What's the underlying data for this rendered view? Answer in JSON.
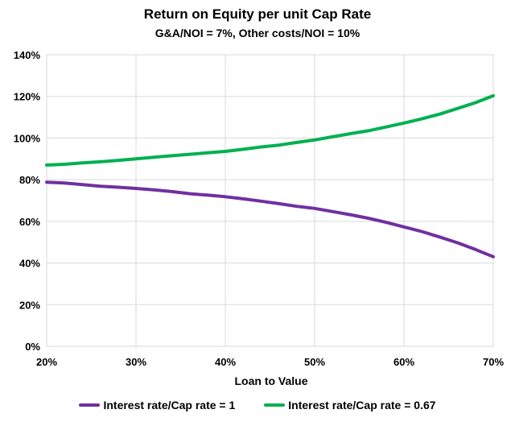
{
  "chart_data": {
    "type": "line",
    "title": "Return on Equity per unit Cap Rate",
    "subtitle": "G&A/NOI = 7%, Other costs/NOI = 10%",
    "xlabel": "Loan to Value",
    "ylabel": "",
    "x_ticks": [
      "20%",
      "30%",
      "40%",
      "50%",
      "60%",
      "70%"
    ],
    "y_ticks": [
      "0%",
      "20%",
      "40%",
      "60%",
      "80%",
      "100%",
      "120%",
      "140%"
    ],
    "xlim": [
      20,
      70
    ],
    "ylim": [
      0,
      140
    ],
    "grid": true,
    "legend_position": "bottom",
    "x": [
      20,
      22,
      24,
      26,
      28,
      30,
      32,
      34,
      36,
      38,
      40,
      42,
      44,
      46,
      48,
      50,
      52,
      54,
      56,
      58,
      60,
      62,
      64,
      66,
      68,
      70
    ],
    "series": [
      {
        "name": "Interest rate/Cap rate = 1",
        "color": "#7030A0",
        "values": [
          78.8,
          78.4,
          77.6,
          76.9,
          76.4,
          75.8,
          75.1,
          74.3,
          73.3,
          72.6,
          71.8,
          70.8,
          69.7,
          68.5,
          67.2,
          66.2,
          64.7,
          63.2,
          61.5,
          59.5,
          57.3,
          55.1,
          52.5,
          49.7,
          46.5,
          43.0
        ]
      },
      {
        "name": "Interest rate/Cap rate = 0.67",
        "color": "#00B050",
        "values": [
          87.0,
          87.4,
          88.1,
          88.6,
          89.3,
          90.0,
          90.8,
          91.5,
          92.2,
          92.9,
          93.6,
          94.6,
          95.7,
          96.6,
          97.9,
          99.1,
          100.6,
          102.1,
          103.5,
          105.3,
          107.2,
          109.2,
          111.5,
          114.2,
          117.0,
          120.3
        ]
      }
    ]
  }
}
